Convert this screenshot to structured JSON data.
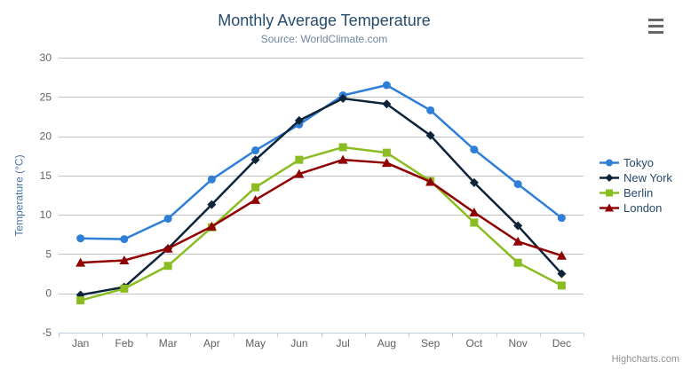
{
  "header": {
    "title": "Monthly Average Temperature",
    "subtitle": "Source: WorldClimate.com"
  },
  "context_menu": {
    "icon": "hamburger-icon"
  },
  "credits": {
    "label": "Highcharts.com"
  },
  "chart_data": {
    "type": "line",
    "title": "Monthly Average Temperature",
    "subtitle": "Source: WorldClimate.com",
    "xlabel": "",
    "ylabel": "Temperature (°C)",
    "categories": [
      "Jan",
      "Feb",
      "Mar",
      "Apr",
      "May",
      "Jun",
      "Jul",
      "Aug",
      "Sep",
      "Oct",
      "Nov",
      "Dec"
    ],
    "series": [
      {
        "name": "Tokyo",
        "color": "#2f7ed8",
        "marker": "circle",
        "values": [
          7.0,
          6.9,
          9.5,
          14.5,
          18.2,
          21.5,
          25.2,
          26.5,
          23.3,
          18.3,
          13.9,
          9.6
        ]
      },
      {
        "name": "New York",
        "color": "#0d233a",
        "marker": "diamond",
        "values": [
          -0.2,
          0.8,
          5.7,
          11.3,
          17.0,
          22.0,
          24.8,
          24.1,
          20.1,
          14.1,
          8.6,
          2.5
        ]
      },
      {
        "name": "Berlin",
        "color": "#8bbc21",
        "marker": "square",
        "values": [
          -0.9,
          0.6,
          3.5,
          8.4,
          13.5,
          17.0,
          18.6,
          17.9,
          14.3,
          9.0,
          3.9,
          1.0
        ]
      },
      {
        "name": "London",
        "color": "#910000",
        "marker": "triangle",
        "values": [
          3.9,
          4.2,
          5.7,
          8.5,
          11.9,
          15.2,
          17.0,
          16.6,
          14.2,
          10.3,
          6.6,
          4.8
        ]
      }
    ],
    "yticks": [
      -5,
      0,
      5,
      10,
      15,
      20,
      25,
      30
    ],
    "ylim": [
      -5,
      30
    ],
    "grid": true,
    "legend_position": "right",
    "style": {
      "grid_color": "#c0c0c0",
      "axis_line_color": "#c0d0e0",
      "tick_label_color": "#606060",
      "title_color": "#274b6d",
      "subtitle_color": "#6d869f",
      "y_axis_title_color": "#4572a7",
      "legend_text_color": "#274b6d",
      "credits_color": "#8f8f8f"
    }
  }
}
